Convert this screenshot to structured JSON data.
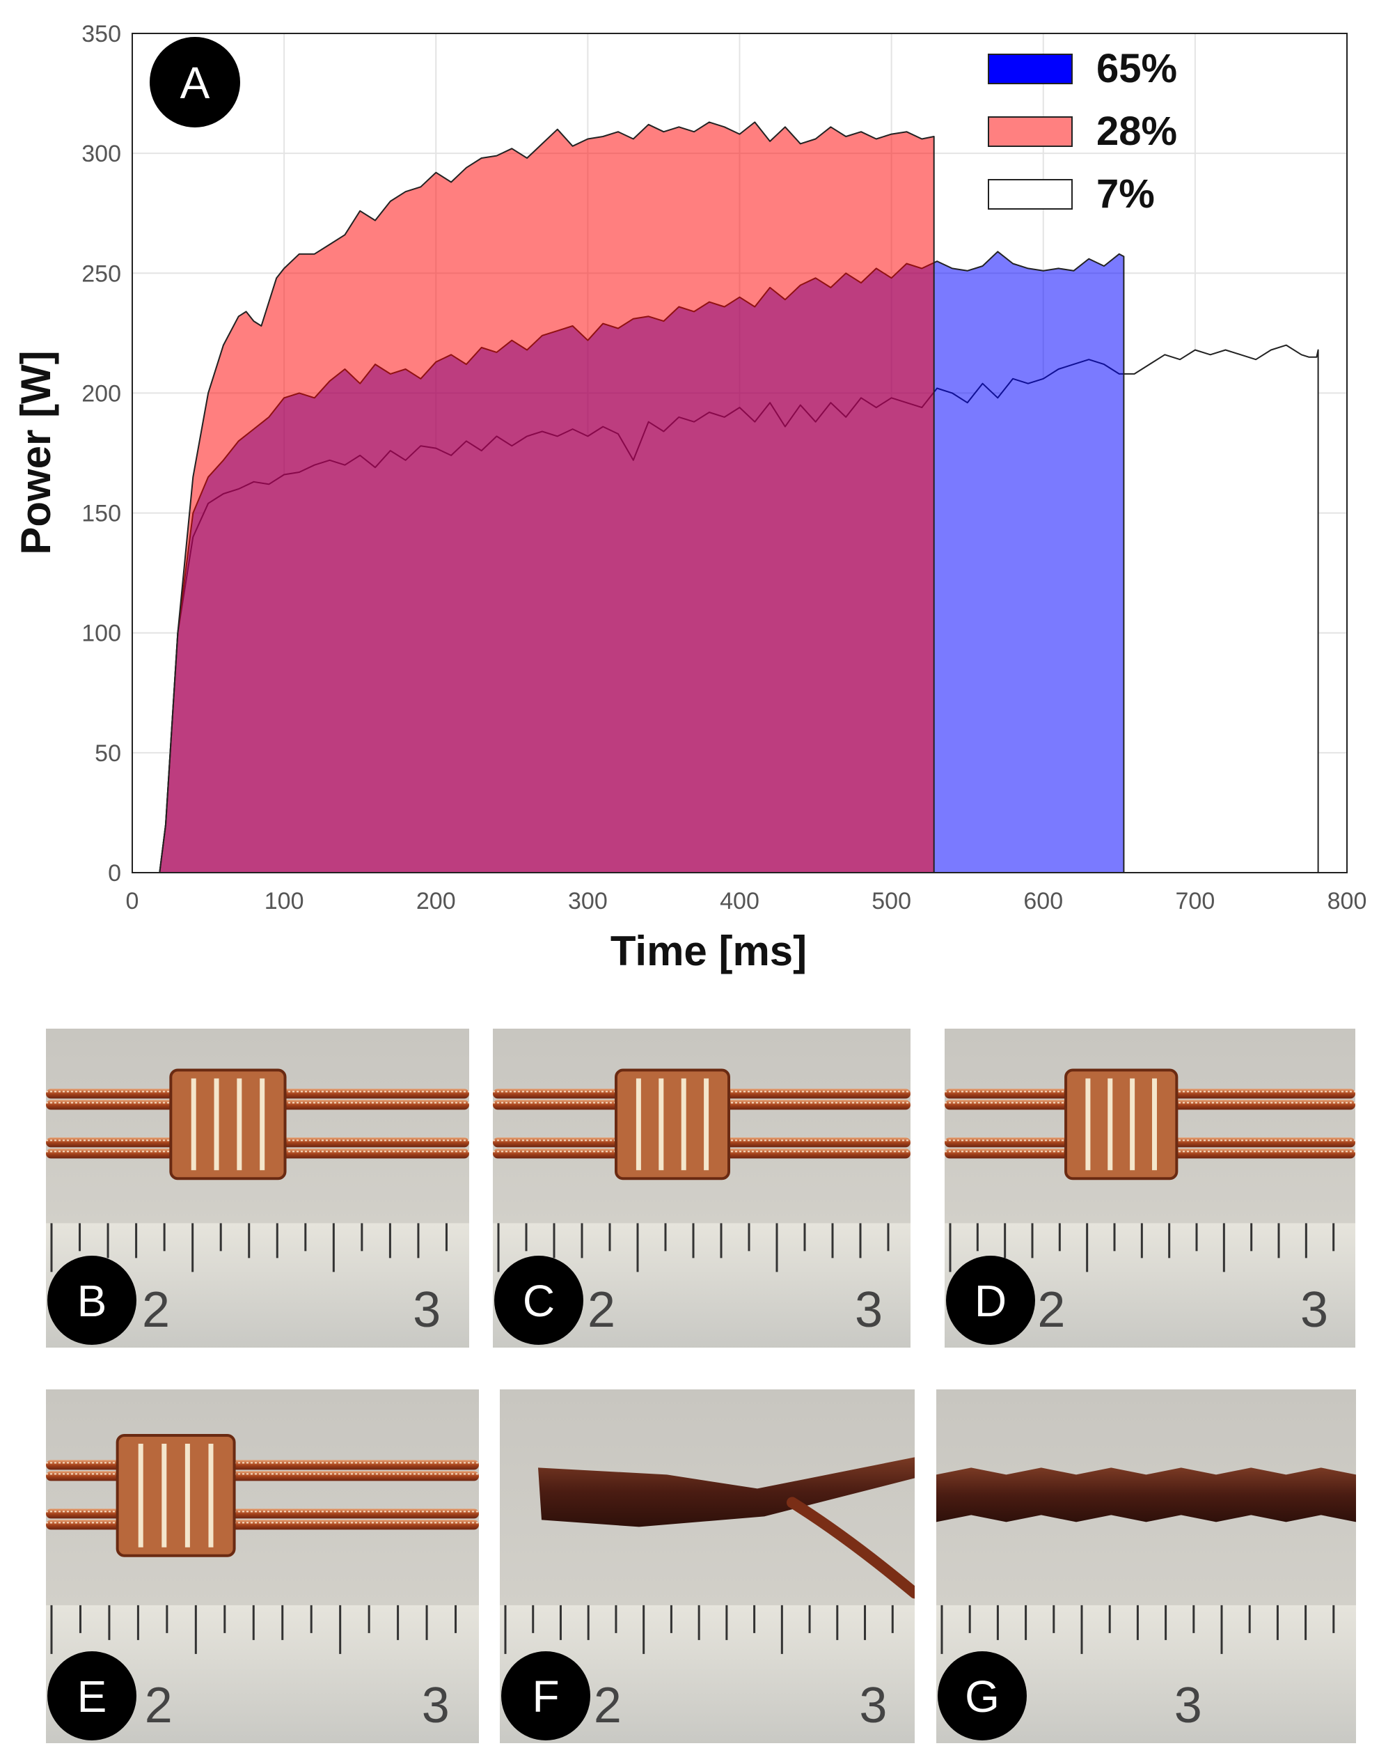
{
  "chart_data": {
    "type": "area",
    "panel_label": "A",
    "xlabel": "Time [ms]",
    "ylabel": "Power [W]",
    "xlim": [
      0,
      800
    ],
    "ylim": [
      0,
      350
    ],
    "xticks": [
      "0",
      "100",
      "200",
      "300",
      "400",
      "500",
      "600",
      "700",
      "800"
    ],
    "yticks": [
      "0",
      "50",
      "100",
      "150",
      "200",
      "250",
      "300",
      "350"
    ],
    "grid": true,
    "legend_position": "top-right",
    "series": [
      {
        "name": "28%",
        "color": "#ff7b7b",
        "x": [
          18,
          22,
          30,
          40,
          50,
          60,
          70,
          75,
          80,
          85,
          90,
          95,
          100,
          110,
          120,
          130,
          140,
          150,
          160,
          170,
          180,
          190,
          200,
          210,
          220,
          230,
          240,
          250,
          260,
          270,
          280,
          290,
          300,
          310,
          320,
          330,
          340,
          350,
          360,
          370,
          380,
          390,
          400,
          410,
          420,
          430,
          440,
          450,
          460,
          470,
          480,
          490,
          500,
          510,
          520,
          528
        ],
        "y": [
          0,
          20,
          100,
          165,
          200,
          220,
          232,
          234,
          230,
          228,
          238,
          248,
          252,
          258,
          258,
          262,
          266,
          276,
          272,
          280,
          284,
          286,
          292,
          288,
          294,
          298,
          299,
          302,
          298,
          304,
          310,
          303,
          306,
          307,
          309,
          306,
          312,
          309,
          311,
          309,
          313,
          311,
          308,
          313,
          305,
          311,
          304,
          306,
          311,
          307,
          309,
          306,
          308,
          309,
          306,
          307
        ]
      },
      {
        "name": "65%",
        "color": "#0000ff",
        "x": [
          18,
          22,
          30,
          40,
          50,
          60,
          70,
          80,
          90,
          100,
          110,
          120,
          130,
          140,
          150,
          160,
          170,
          180,
          190,
          200,
          210,
          220,
          230,
          240,
          250,
          260,
          270,
          280,
          290,
          300,
          310,
          320,
          330,
          340,
          350,
          360,
          370,
          380,
          390,
          400,
          410,
          420,
          430,
          440,
          450,
          460,
          470,
          480,
          490,
          500,
          510,
          520,
          530,
          540,
          550,
          560,
          570,
          580,
          590,
          600,
          610,
          620,
          630,
          640,
          650,
          653
        ],
        "y": [
          0,
          20,
          100,
          150,
          165,
          172,
          180,
          185,
          190,
          198,
          200,
          198,
          205,
          210,
          204,
          212,
          208,
          210,
          206,
          213,
          216,
          212,
          219,
          217,
          222,
          218,
          224,
          226,
          228,
          222,
          229,
          227,
          231,
          232,
          230,
          236,
          234,
          238,
          236,
          240,
          236,
          244,
          239,
          245,
          248,
          244,
          250,
          246,
          252,
          248,
          254,
          252,
          255,
          252,
          251,
          253,
          259,
          254,
          252,
          251,
          252,
          251,
          256,
          253,
          258,
          257
        ]
      },
      {
        "name": "7%",
        "color": "#ffffff",
        "x": [
          18,
          22,
          30,
          40,
          50,
          55,
          60,
          70,
          80,
          90,
          100,
          110,
          120,
          130,
          140,
          150,
          160,
          170,
          180,
          190,
          200,
          210,
          220,
          230,
          240,
          250,
          260,
          270,
          280,
          290,
          300,
          310,
          320,
          330,
          340,
          350,
          360,
          370,
          380,
          390,
          400,
          410,
          420,
          430,
          440,
          450,
          460,
          470,
          480,
          490,
          500,
          510,
          520,
          530,
          540,
          550,
          560,
          570,
          580,
          590,
          600,
          610,
          620,
          630,
          640,
          650,
          660,
          670,
          680,
          690,
          700,
          710,
          720,
          730,
          740,
          750,
          760,
          770,
          775,
          780,
          781
        ],
        "y": [
          0,
          20,
          100,
          140,
          154,
          156,
          158,
          160,
          163,
          162,
          166,
          167,
          170,
          172,
          170,
          174,
          169,
          176,
          172,
          178,
          177,
          174,
          180,
          176,
          182,
          178,
          182,
          184,
          182,
          185,
          182,
          186,
          183,
          172,
          188,
          184,
          190,
          188,
          192,
          190,
          194,
          188,
          196,
          186,
          195,
          188,
          196,
          190,
          198,
          194,
          198,
          196,
          194,
          202,
          200,
          196,
          204,
          198,
          206,
          204,
          206,
          210,
          212,
          214,
          212,
          208,
          208,
          212,
          216,
          214,
          218,
          216,
          218,
          216,
          214,
          218,
          220,
          216,
          215,
          215,
          218
        ]
      }
    ]
  },
  "photo_panels": [
    {
      "label": "B",
      "ruler_numbers": [
        "2",
        "3"
      ]
    },
    {
      "label": "C",
      "ruler_numbers": [
        "2",
        "3"
      ]
    },
    {
      "label": "D",
      "ruler_numbers": [
        "2",
        "3"
      ]
    },
    {
      "label": "E",
      "ruler_numbers": [
        "2",
        "3"
      ]
    },
    {
      "label": "F",
      "ruler_numbers": [
        "2",
        "3"
      ]
    },
    {
      "label": "G",
      "ruler_numbers": [
        "3"
      ]
    }
  ]
}
